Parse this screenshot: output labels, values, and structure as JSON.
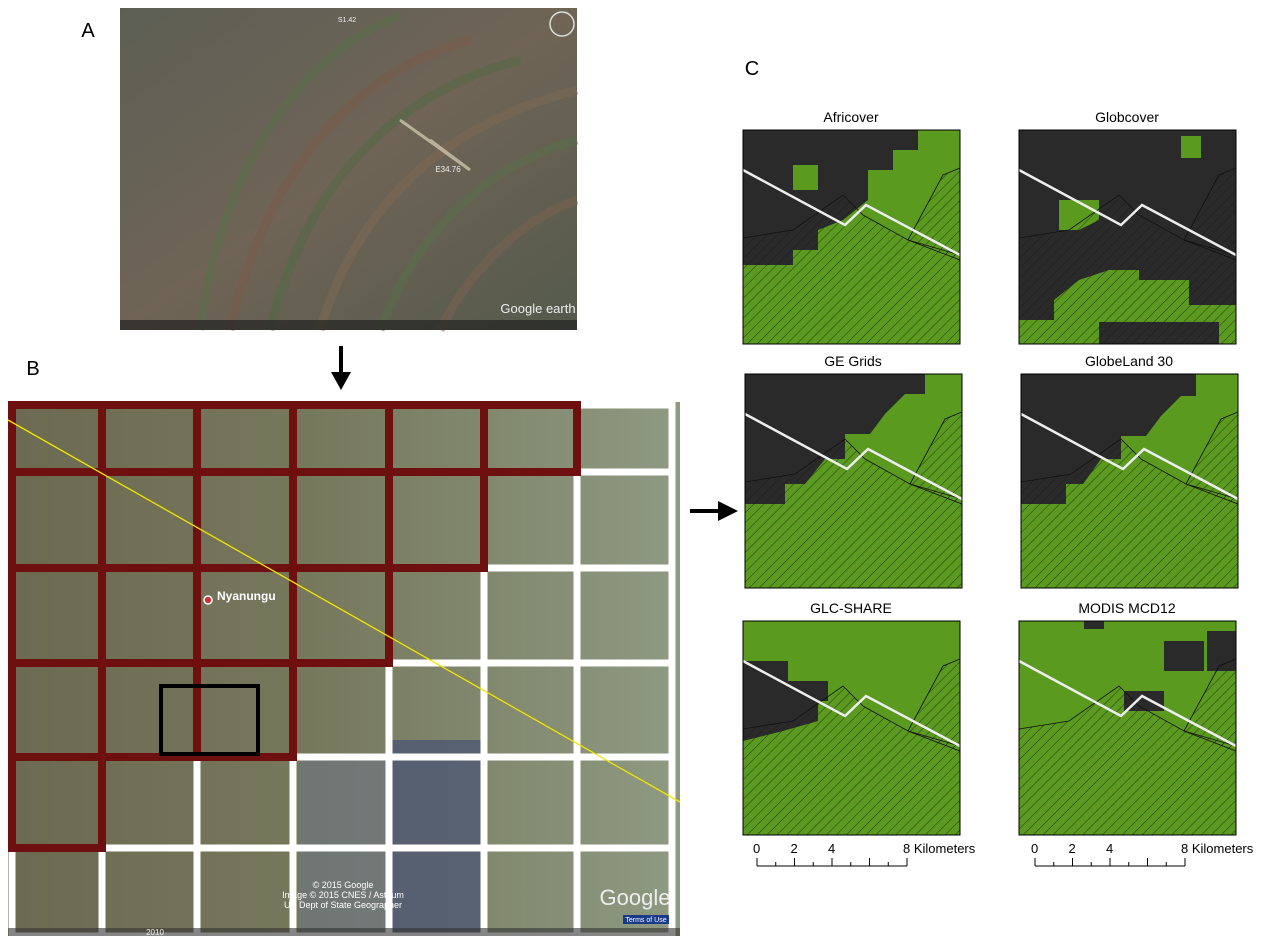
{
  "panels": {
    "a": {
      "label": "A",
      "map_texts": [
        "S1.42",
        "E34.76",
        "Google earth"
      ]
    },
    "b": {
      "label": "B",
      "place": "Nyanungu",
      "attribution": [
        "© 2015 Google",
        "Image © 2015 CNES / Astrium",
        "US Dept of State Geographer"
      ],
      "logo": "Google",
      "terms": "Terms of Use",
      "year": "2010"
    },
    "c": {
      "label": "C",
      "maps": [
        {
          "title": "Africover"
        },
        {
          "title": "Globcover"
        },
        {
          "title": "GE Grids"
        },
        {
          "title": "GlobeLand 30"
        },
        {
          "title": "GLC-SHARE"
        },
        {
          "title": "MODIS MCD12"
        }
      ],
      "scale_bar": {
        "labels": [
          "0",
          "2",
          "4",
          "8 Kilometers"
        ]
      }
    }
  }
}
